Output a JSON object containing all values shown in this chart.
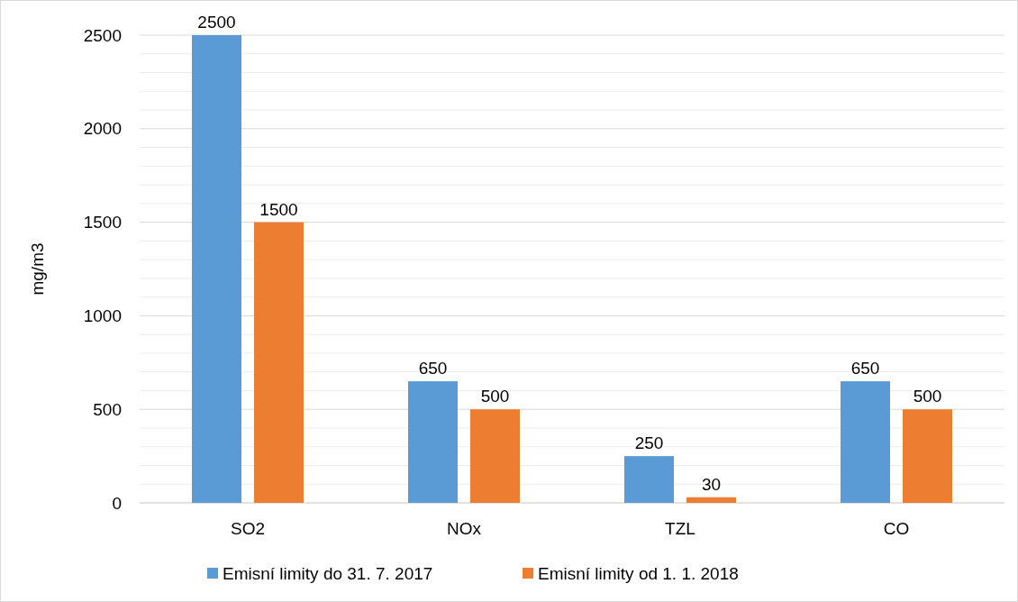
{
  "chart_data": {
    "type": "bar",
    "ylabel": "mg/m3",
    "categories": [
      "SO2",
      "NOx",
      "TZL",
      "CO"
    ],
    "series": [
      {
        "name": "Emisní limity do 31. 7. 2017",
        "color": "#5b9bd5",
        "values": [
          2500,
          650,
          250,
          650
        ]
      },
      {
        "name": "Emisní limity od 1. 1. 2018",
        "color": "#ed7d31",
        "values": [
          1500,
          500,
          30,
          500
        ]
      }
    ],
    "ylim": [
      0,
      2500
    ],
    "yticks": [
      0,
      {
        "value": 100,
        "label": null
      },
      {
        "value": 200,
        "label": null
      },
      {
        "value": 300,
        "label": null
      },
      {
        "value": 400,
        "label": null
      },
      500,
      {
        "value": 600,
        "label": null
      },
      {
        "value": 700,
        "label": null
      },
      {
        "value": 800,
        "label": null
      },
      {
        "value": 900,
        "label": null
      },
      1000,
      {
        "value": 1100,
        "label": null
      },
      {
        "value": 1200,
        "label": null
      },
      {
        "value": 1300,
        "label": null
      },
      {
        "value": 1400,
        "label": null
      },
      1500,
      {
        "value": 1600,
        "label": null
      },
      {
        "value": 1700,
        "label": null
      },
      {
        "value": 1800,
        "label": null
      },
      {
        "value": 1900,
        "label": null
      },
      2000,
      {
        "value": 2100,
        "label": null
      },
      {
        "value": 2200,
        "label": null
      },
      {
        "value": 2300,
        "label": null
      },
      {
        "value": 2400,
        "label": null
      },
      2500
    ],
    "grid": "y",
    "legend": "bottom",
    "data_labels": true
  }
}
